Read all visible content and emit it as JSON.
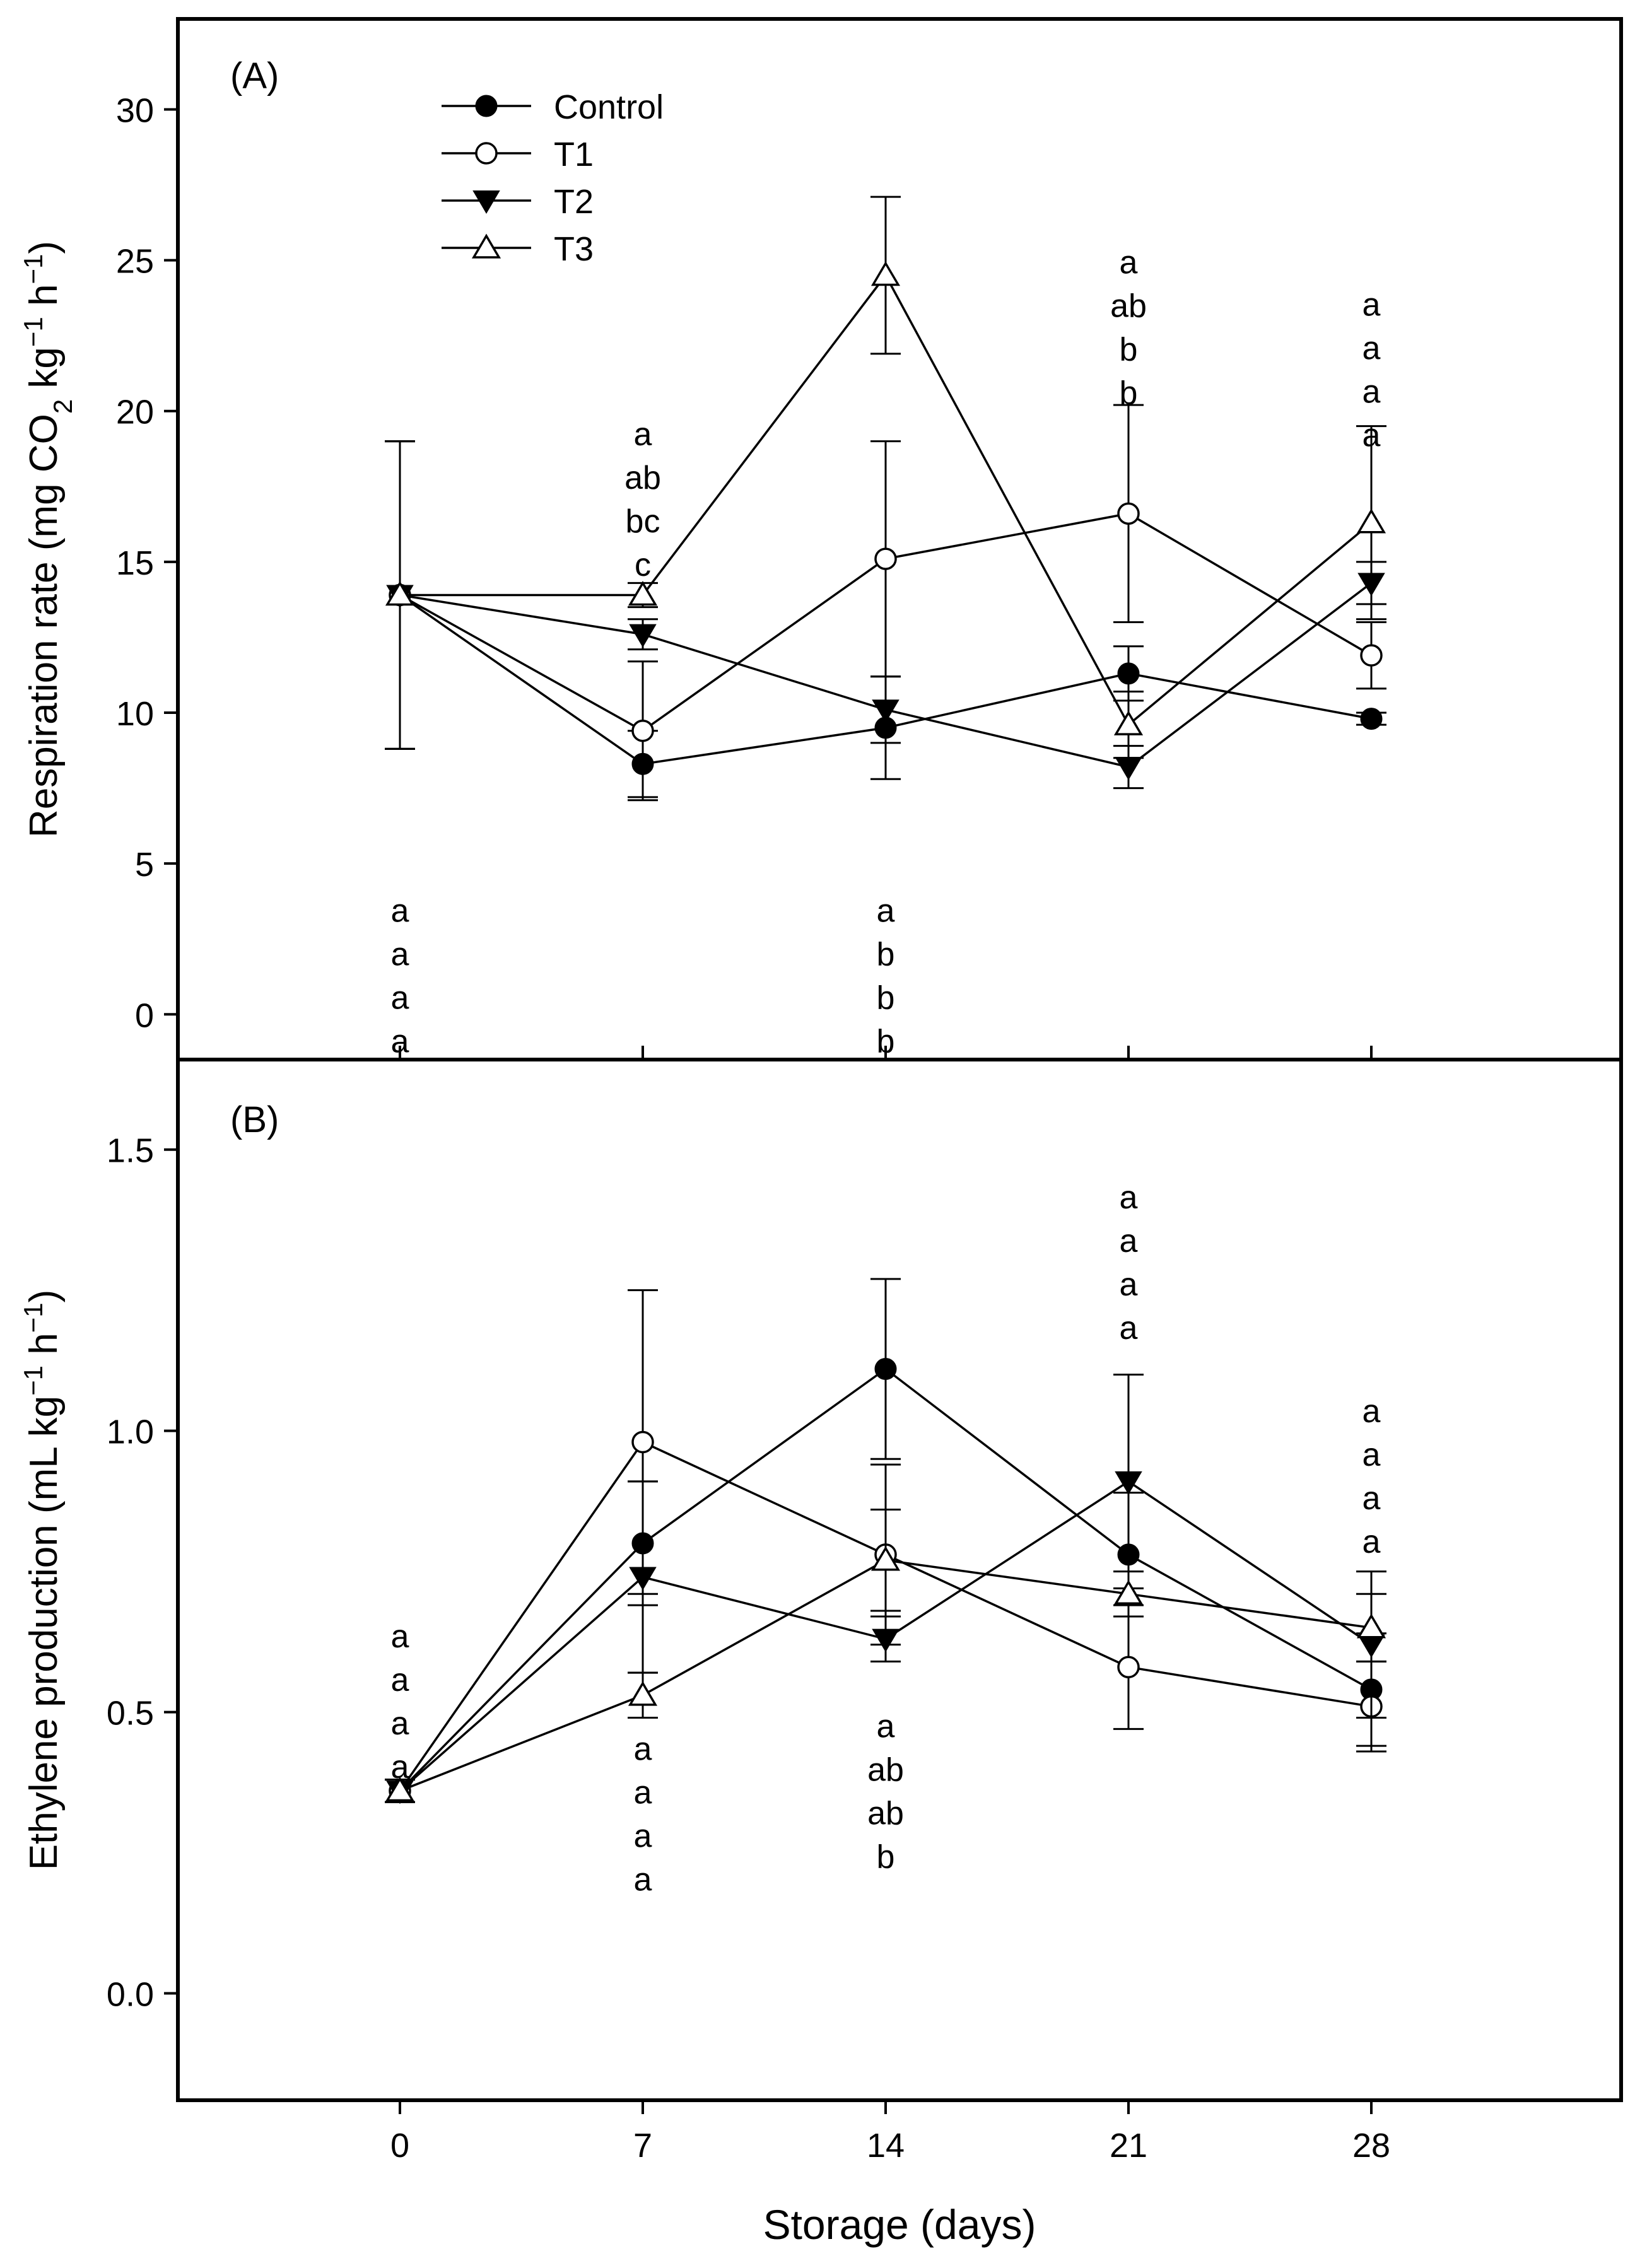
{
  "figure": {
    "xlabel": "Storage (days)",
    "x_ticks": [
      0,
      7,
      14,
      21,
      28
    ],
    "xlim": [
      -6.4,
      35.2
    ]
  },
  "colors": {
    "ink": "#000000",
    "open_fill": "#ffffff"
  },
  "legend": {
    "placement": "top-left",
    "entries": [
      {
        "label": "Control",
        "marker": "circle-filled"
      },
      {
        "label": "T1",
        "marker": "circle-open"
      },
      {
        "label": "T2",
        "marker": "triangle-down-filled"
      },
      {
        "label": "T3",
        "marker": "triangle-up-open"
      }
    ]
  },
  "chart_data": [
    {
      "type": "line",
      "panel_label": "(A)",
      "ylabel": "Respiration rate (mg CO2 kg-1 h-1)",
      "ylabel_parts": {
        "pre": "Respiration rate (mg CO",
        "sub": "2",
        "mid": " kg",
        "sup1": "−1",
        "mid2": " h",
        "sup2": "−1",
        "post": ")"
      },
      "ylim": [
        -1.5,
        33
      ],
      "y_ticks": [
        0,
        5,
        10,
        15,
        20,
        25,
        30
      ],
      "x": [
        0,
        7,
        14,
        21,
        28
      ],
      "series": [
        {
          "name": "Control",
          "marker": "circle-filled",
          "values": [
            13.9,
            8.3,
            9.5,
            11.3,
            9.8
          ],
          "err": [
            5.1,
            1.1,
            1.7,
            0.9,
            0.2
          ]
        },
        {
          "name": "T1",
          "marker": "circle-open",
          "values": [
            13.9,
            9.4,
            15.1,
            16.6,
            11.9
          ],
          "err": [
            5.1,
            2.3,
            3.9,
            3.6,
            1.1
          ]
        },
        {
          "name": "T2",
          "marker": "triangle-down-filled",
          "values": [
            13.9,
            12.6,
            10.1,
            8.2,
            14.3
          ],
          "err": [
            5.1,
            0.5,
            1.1,
            0.7,
            0.7
          ]
        },
        {
          "name": "T3",
          "marker": "triangle-up-open",
          "values": [
            13.9,
            13.9,
            24.5,
            9.6,
            16.3
          ],
          "err": [
            5.1,
            0.4,
            2.6,
            1.1,
            3.2
          ]
        }
      ],
      "letter_groups": [
        {
          "x": 0,
          "y_top": 3.9,
          "letters": [
            "a",
            "a",
            "a",
            "a"
          ]
        },
        {
          "x": 7,
          "y_top": 19.7,
          "letters": [
            "a",
            "ab",
            "bc",
            "c"
          ]
        },
        {
          "x": 14,
          "y_top": 3.9,
          "letters": [
            "a",
            "b",
            "b",
            "b"
          ]
        },
        {
          "x": 21,
          "y_top": 25.4,
          "letters": [
            "a",
            "ab",
            "b",
            "b"
          ]
        },
        {
          "x": 28,
          "y_top": 24.0,
          "letters": [
            "a",
            "a",
            "a",
            "a"
          ]
        }
      ]
    },
    {
      "type": "line",
      "panel_label": "(B)",
      "ylabel": "Ethylene production (mL kg-1 h-1)",
      "ylabel_parts": {
        "pre": "Ethylene production (mL kg",
        "sup1": "−1",
        "mid2": " h",
        "sup2": "−1",
        "post": ")"
      },
      "ylim": [
        -0.19,
        1.66
      ],
      "y_ticks": [
        0.0,
        0.5,
        1.0,
        1.5
      ],
      "y_tick_labels": [
        "0.0",
        "0.5",
        "1.0",
        "1.5"
      ],
      "x": [
        0,
        7,
        14,
        21,
        28
      ],
      "series": [
        {
          "name": "Control",
          "marker": "circle-filled",
          "values": [
            0.36,
            0.8,
            1.11,
            0.78,
            0.54
          ],
          "err": [
            0.02,
            0.11,
            0.16,
            0.11,
            0.1
          ]
        },
        {
          "name": "T1",
          "marker": "circle-open",
          "values": [
            0.36,
            0.98,
            0.78,
            0.58,
            0.51
          ],
          "err": [
            0.02,
            0.27,
            0.16,
            0.11,
            0.08
          ]
        },
        {
          "name": "T2",
          "marker": "triangle-down-filled",
          "values": [
            0.36,
            0.74,
            0.63,
            0.91,
            0.62
          ],
          "err": [
            0.02,
            0.17,
            0.04,
            0.19,
            0.13
          ]
        },
        {
          "name": "T3",
          "marker": "triangle-up-open",
          "values": [
            0.36,
            0.53,
            0.77,
            0.71,
            0.65
          ],
          "err": [
            0.02,
            0.04,
            0.09,
            0.04,
            0.06
          ]
        }
      ],
      "letter_groups": [
        {
          "x": 0,
          "y_top": 0.66,
          "letters": [
            "a",
            "a",
            "a",
            "a"
          ]
        },
        {
          "x": 7,
          "y_top": 0.46,
          "letters": [
            "a",
            "a",
            "a",
            "a"
          ]
        },
        {
          "x": 14,
          "y_top": 0.5,
          "letters": [
            "a",
            "ab",
            "ab",
            "b"
          ]
        },
        {
          "x": 21,
          "y_top": 1.44,
          "letters": [
            "a",
            "a",
            "a",
            "a"
          ]
        },
        {
          "x": 28,
          "y_top": 1.06,
          "letters": [
            "a",
            "a",
            "a",
            "a"
          ]
        }
      ]
    }
  ]
}
